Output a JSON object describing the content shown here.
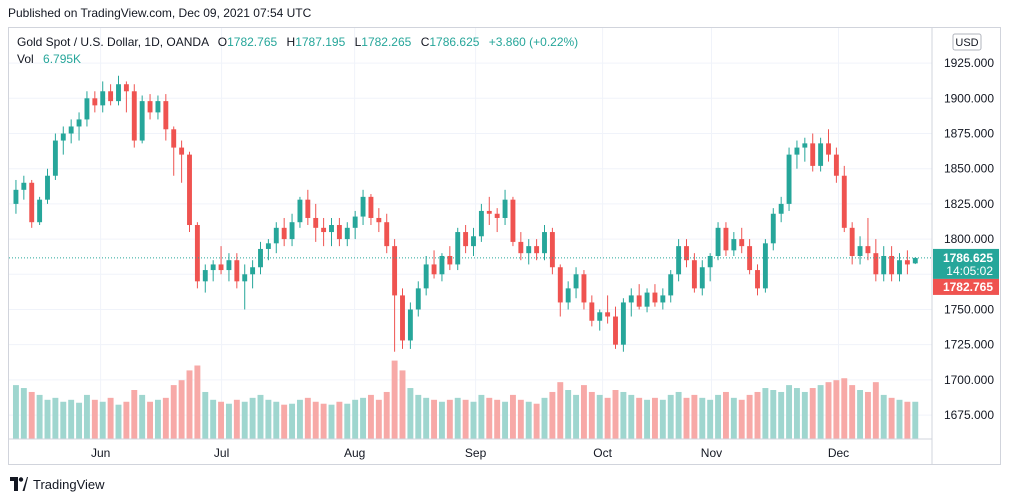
{
  "published_text": "Published on TradingView.com, Dec 09, 2021 07:54 UTC",
  "footer": {
    "brand": "TradingView"
  },
  "legend": {
    "title": "Gold Spot / U.S. Dollar, 1D, OANDA",
    "o_label": "O",
    "o_value": "1782.765",
    "h_label": "H",
    "h_value": "1787.195",
    "l_label": "L",
    "l_value": "1782.265",
    "c_label": "C",
    "c_value": "1786.625",
    "change": "+3.860 (+0.22%)",
    "vol_label": "Vol",
    "vol_value": "6.795K"
  },
  "currency_button": "USD",
  "colors": {
    "up": "#26a69a",
    "down": "#ef5350",
    "vol_up": "#9fd6cf",
    "vol_down": "#f7a9a7",
    "grid": "#f0f3fa",
    "text": "#131722"
  },
  "chart_data": {
    "type": "candlestick",
    "symbol": "Gold Spot / U.S. Dollar",
    "interval": "1D",
    "exchange": "OANDA",
    "y_axis": {
      "ticks": [
        "1925.000",
        "1900.000",
        "1875.000",
        "1850.000",
        "1825.000",
        "1800.000",
        "1775.000",
        "1750.000",
        "1725.000",
        "1700.000",
        "1675.000"
      ],
      "tick_values": [
        1925,
        1900,
        1875,
        1850,
        1825,
        1800,
        1775,
        1750,
        1725,
        1700,
        1675
      ],
      "range": [
        1658,
        1940
      ]
    },
    "x_axis": {
      "month_labels": [
        "Jun",
        "Jul",
        "Aug",
        "Sep",
        "Oct",
        "Nov",
        "Dec"
      ]
    },
    "price_labels": [
      {
        "value": 1786.625,
        "text": "1786.625",
        "sub": "14:05:02",
        "color": "#26a69a"
      },
      {
        "value": 1782.765,
        "text": "1782.765",
        "color": "#ef5350"
      }
    ],
    "volume_max": 100,
    "candles": [
      [
        1825,
        1842,
        1818,
        1835,
        55
      ],
      [
        1835,
        1845,
        1828,
        1840,
        52
      ],
      [
        1840,
        1842,
        1808,
        1812,
        48
      ],
      [
        1812,
        1830,
        1810,
        1828,
        45
      ],
      [
        1828,
        1850,
        1825,
        1845,
        40
      ],
      [
        1845,
        1875,
        1842,
        1870,
        42
      ],
      [
        1870,
        1880,
        1860,
        1875,
        38
      ],
      [
        1875,
        1885,
        1868,
        1880,
        40
      ],
      [
        1880,
        1890,
        1870,
        1885,
        37
      ],
      [
        1885,
        1905,
        1880,
        1900,
        45
      ],
      [
        1900,
        1905,
        1890,
        1895,
        40
      ],
      [
        1895,
        1912,
        1890,
        1905,
        38
      ],
      [
        1905,
        1910,
        1895,
        1898,
        42
      ],
      [
        1898,
        1916,
        1895,
        1910,
        35
      ],
      [
        1910,
        1912,
        1890,
        1905,
        38
      ],
      [
        1905,
        1910,
        1865,
        1870,
        50
      ],
      [
        1870,
        1902,
        1868,
        1898,
        45
      ],
      [
        1898,
        1903,
        1885,
        1890,
        38
      ],
      [
        1890,
        1902,
        1885,
        1898,
        40
      ],
      [
        1898,
        1903,
        1870,
        1878,
        42
      ],
      [
        1878,
        1880,
        1845,
        1865,
        55
      ],
      [
        1865,
        1870,
        1840,
        1860,
        60
      ],
      [
        1860,
        1862,
        1805,
        1810,
        70
      ],
      [
        1810,
        1812,
        1765,
        1770,
        75
      ],
      [
        1770,
        1782,
        1762,
        1778,
        48
      ],
      [
        1778,
        1785,
        1770,
        1782,
        40
      ],
      [
        1782,
        1795,
        1775,
        1778,
        38
      ],
      [
        1778,
        1790,
        1770,
        1785,
        36
      ],
      [
        1785,
        1790,
        1765,
        1770,
        40
      ],
      [
        1770,
        1782,
        1750,
        1775,
        38
      ],
      [
        1775,
        1785,
        1765,
        1780,
        42
      ],
      [
        1780,
        1798,
        1775,
        1793,
        45
      ],
      [
        1793,
        1800,
        1785,
        1797,
        40
      ],
      [
        1797,
        1812,
        1790,
        1808,
        38
      ],
      [
        1808,
        1815,
        1795,
        1800,
        35
      ],
      [
        1800,
        1818,
        1795,
        1812,
        36
      ],
      [
        1812,
        1830,
        1808,
        1828,
        40
      ],
      [
        1828,
        1835,
        1810,
        1815,
        42
      ],
      [
        1815,
        1825,
        1798,
        1808,
        38
      ],
      [
        1808,
        1815,
        1795,
        1805,
        36
      ],
      [
        1805,
        1815,
        1795,
        1810,
        35
      ],
      [
        1810,
        1815,
        1795,
        1800,
        38
      ],
      [
        1800,
        1812,
        1795,
        1808,
        36
      ],
      [
        1808,
        1820,
        1800,
        1816,
        40
      ],
      [
        1816,
        1835,
        1810,
        1830,
        42
      ],
      [
        1830,
        1832,
        1810,
        1815,
        45
      ],
      [
        1815,
        1822,
        1805,
        1812,
        40
      ],
      [
        1812,
        1818,
        1790,
        1795,
        48
      ],
      [
        1795,
        1800,
        1720,
        1760,
        80
      ],
      [
        1760,
        1765,
        1722,
        1728,
        70
      ],
      [
        1728,
        1755,
        1722,
        1750,
        52
      ],
      [
        1750,
        1770,
        1745,
        1765,
        45
      ],
      [
        1765,
        1788,
        1760,
        1782,
        42
      ],
      [
        1782,
        1792,
        1772,
        1775,
        40
      ],
      [
        1775,
        1790,
        1770,
        1788,
        38
      ],
      [
        1788,
        1795,
        1778,
        1782,
        40
      ],
      [
        1782,
        1808,
        1778,
        1805,
        42
      ],
      [
        1805,
        1810,
        1790,
        1795,
        40
      ],
      [
        1795,
        1808,
        1788,
        1802,
        38
      ],
      [
        1802,
        1825,
        1798,
        1820,
        45
      ],
      [
        1820,
        1830,
        1810,
        1818,
        42
      ],
      [
        1818,
        1822,
        1805,
        1815,
        40
      ],
      [
        1815,
        1835,
        1810,
        1828,
        38
      ],
      [
        1828,
        1830,
        1795,
        1798,
        45
      ],
      [
        1798,
        1805,
        1785,
        1790,
        40
      ],
      [
        1790,
        1800,
        1782,
        1795,
        38
      ],
      [
        1795,
        1800,
        1785,
        1790,
        36
      ],
      [
        1790,
        1810,
        1785,
        1805,
        42
      ],
      [
        1805,
        1808,
        1775,
        1780,
        48
      ],
      [
        1780,
        1782,
        1745,
        1755,
        58
      ],
      [
        1755,
        1770,
        1750,
        1765,
        50
      ],
      [
        1765,
        1780,
        1758,
        1775,
        45
      ],
      [
        1775,
        1778,
        1750,
        1755,
        55
      ],
      [
        1755,
        1760,
        1738,
        1742,
        48
      ],
      [
        1742,
        1750,
        1735,
        1748,
        45
      ],
      [
        1748,
        1760,
        1740,
        1745,
        42
      ],
      [
        1745,
        1752,
        1722,
        1725,
        50
      ],
      [
        1725,
        1758,
        1720,
        1755,
        48
      ],
      [
        1755,
        1765,
        1745,
        1760,
        45
      ],
      [
        1760,
        1768,
        1750,
        1752,
        42
      ],
      [
        1752,
        1765,
        1748,
        1762,
        40
      ],
      [
        1762,
        1768,
        1752,
        1755,
        42
      ],
      [
        1755,
        1765,
        1750,
        1760,
        40
      ],
      [
        1760,
        1778,
        1755,
        1775,
        45
      ],
      [
        1775,
        1800,
        1770,
        1795,
        48
      ],
      [
        1795,
        1800,
        1780,
        1785,
        42
      ],
      [
        1785,
        1790,
        1762,
        1765,
        45
      ],
      [
        1765,
        1785,
        1760,
        1780,
        42
      ],
      [
        1780,
        1790,
        1770,
        1788,
        40
      ],
      [
        1788,
        1812,
        1785,
        1808,
        45
      ],
      [
        1808,
        1812,
        1788,
        1792,
        48
      ],
      [
        1792,
        1805,
        1788,
        1800,
        42
      ],
      [
        1800,
        1808,
        1790,
        1795,
        40
      ],
      [
        1795,
        1800,
        1775,
        1778,
        45
      ],
      [
        1778,
        1782,
        1760,
        1765,
        48
      ],
      [
        1765,
        1800,
        1762,
        1797,
        52
      ],
      [
        1797,
        1822,
        1792,
        1818,
        50
      ],
      [
        1818,
        1830,
        1812,
        1825,
        48
      ],
      [
        1825,
        1865,
        1820,
        1860,
        55
      ],
      [
        1860,
        1870,
        1850,
        1865,
        52
      ],
      [
        1865,
        1872,
        1855,
        1868,
        48
      ],
      [
        1868,
        1875,
        1848,
        1852,
        52
      ],
      [
        1852,
        1872,
        1848,
        1868,
        55
      ],
      [
        1868,
        1878,
        1855,
        1860,
        58
      ],
      [
        1860,
        1865,
        1840,
        1845,
        60
      ],
      [
        1845,
        1852,
        1805,
        1808,
        62
      ],
      [
        1808,
        1812,
        1782,
        1788,
        55
      ],
      [
        1788,
        1802,
        1782,
        1795,
        50
      ],
      [
        1795,
        1815,
        1785,
        1790,
        48
      ],
      [
        1790,
        1800,
        1770,
        1775,
        58
      ],
      [
        1775,
        1795,
        1770,
        1788,
        45
      ],
      [
        1788,
        1795,
        1770,
        1775,
        42
      ],
      [
        1775,
        1790,
        1770,
        1785,
        40
      ],
      [
        1785,
        1792,
        1775,
        1782,
        38
      ],
      [
        1782.765,
        1787.195,
        1782.265,
        1786.625,
        38
      ]
    ]
  }
}
